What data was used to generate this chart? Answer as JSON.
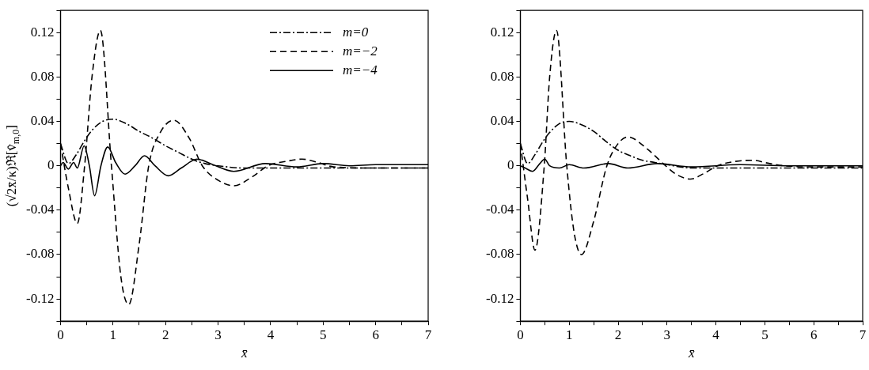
{
  "chart_data": [
    {
      "type": "line",
      "xlabel": "x̄",
      "ylabel": "(√2x̄/κ)ℜ[v̂$_{m,0}$]",
      "xlim": [
        0,
        7
      ],
      "ylim": [
        -0.14,
        0.14
      ],
      "xticks": [
        0,
        {
          "value": 0.5,
          "label": null
        },
        1,
        {
          "value": 1.5,
          "label": null
        },
        2,
        {
          "value": 2.5,
          "label": null
        },
        3,
        {
          "value": 3.5,
          "label": null
        },
        4,
        {
          "value": 4.5,
          "label": null
        },
        5,
        {
          "value": 5.5,
          "label": null
        },
        6,
        {
          "value": 6.5,
          "label": null
        },
        7
      ],
      "yticks": [
        {
          "value": -0.14,
          "label": null
        },
        -0.12,
        {
          "value": -0.1,
          "label": null
        },
        -0.08,
        {
          "value": -0.06,
          "label": null
        },
        -0.04,
        {
          "value": -0.02,
          "label": null
        },
        0,
        {
          "value": 0.02,
          "label": null
        },
        0.04,
        {
          "value": 0.06,
          "label": null
        },
        0.08,
        {
          "value": 0.1,
          "label": null
        },
        0.12,
        {
          "value": 0.14,
          "label": null
        }
      ],
      "legend": "top right",
      "marker": "none",
      "series": [
        {
          "name": "m=0",
          "color": "#000000",
          "line_style": "dotted",
          "x": [
            0,
            0.15,
            0.3,
            0.45,
            0.6,
            0.8,
            1.0,
            1.25,
            1.5,
            1.75,
            2.0,
            2.25,
            2.5,
            2.75,
            3.0,
            3.5,
            4.0,
            5.0,
            6.0,
            7.0
          ],
          "values": [
            0.02,
            0.002,
            0.01,
            0.022,
            0.032,
            0.04,
            0.042,
            0.038,
            0.031,
            0.025,
            0.018,
            0.012,
            0.006,
            0.002,
            0.0,
            -0.002,
            -0.002,
            -0.002,
            -0.002,
            -0.002
          ]
        },
        {
          "name": "m=−2",
          "color": "#000000",
          "line_style": "dashed",
          "x": [
            0,
            0.15,
            0.32,
            0.46,
            0.6,
            0.76,
            0.97,
            1.15,
            1.3,
            1.5,
            1.68,
            1.9,
            2.16,
            2.45,
            2.7,
            3.0,
            3.3,
            3.65,
            3.95,
            4.3,
            4.6,
            4.9,
            5.2,
            6.0,
            7.0
          ],
          "values": [
            0.02,
            -0.02,
            -0.052,
            0.0,
            0.08,
            0.122,
            0.0,
            -0.1,
            -0.125,
            -0.07,
            0.0,
            0.03,
            0.041,
            0.025,
            0.0,
            -0.013,
            -0.018,
            -0.01,
            0.0,
            0.004,
            0.006,
            0.003,
            -0.001,
            -0.002,
            -0.002
          ]
        },
        {
          "name": "m=−4",
          "color": "#000000",
          "line_style": "solid",
          "x": [
            0,
            0.05,
            0.15,
            0.25,
            0.32,
            0.45,
            0.55,
            0.65,
            0.77,
            0.9,
            1.05,
            1.23,
            1.42,
            1.6,
            1.8,
            2.05,
            2.3,
            2.6,
            2.9,
            3.3,
            3.9,
            4.5,
            5.0,
            5.5,
            6.0,
            7.0
          ],
          "values": [
            0.0,
            0.003,
            -0.003,
            0.003,
            -0.002,
            0.018,
            0.0,
            -0.027,
            0.0,
            0.017,
            0.003,
            -0.0075,
            0.0,
            0.009,
            0.0,
            -0.009,
            -0.002,
            0.006,
            0.001,
            -0.005,
            0.002,
            -0.001,
            0.002,
            0.0,
            0.001,
            0.001
          ]
        }
      ]
    },
    {
      "type": "line",
      "xlabel": "x̄",
      "xlim": [
        0,
        7
      ],
      "ylim": [
        -0.14,
        0.14
      ],
      "xticks": [
        0,
        {
          "value": 0.5,
          "label": null
        },
        1,
        {
          "value": 1.5,
          "label": null
        },
        2,
        {
          "value": 2.5,
          "label": null
        },
        3,
        {
          "value": 3.5,
          "label": null
        },
        4,
        {
          "value": 4.5,
          "label": null
        },
        5,
        {
          "value": 5.5,
          "label": null
        },
        6,
        {
          "value": 6.5,
          "label": null
        },
        7
      ],
      "yticks": [
        {
          "value": -0.14,
          "label": null
        },
        -0.12,
        {
          "value": -0.1,
          "label": null
        },
        -0.08,
        {
          "value": -0.06,
          "label": null
        },
        -0.04,
        {
          "value": -0.02,
          "label": null
        },
        0,
        {
          "value": 0.02,
          "label": null
        },
        0.04,
        {
          "value": 0.06,
          "label": null
        },
        0.08,
        {
          "value": 0.1,
          "label": null
        },
        0.12,
        {
          "value": 0.14,
          "label": null
        }
      ],
      "marker": "none",
      "series": [
        {
          "color": "#000000",
          "line_style": "dotted",
          "x": [
            0,
            0.15,
            0.3,
            0.45,
            0.6,
            0.8,
            1.0,
            1.25,
            1.5,
            1.75,
            2.0,
            2.25,
            2.5,
            2.75,
            3.0,
            3.5,
            4.0,
            5.0,
            6.0,
            7.0
          ],
          "values": [
            0.02,
            0.002,
            0.01,
            0.021,
            0.03,
            0.038,
            0.04,
            0.037,
            0.031,
            0.022,
            0.014,
            0.009,
            0.005,
            0.003,
            0.001,
            -0.002,
            -0.002,
            -0.002,
            -0.002,
            -0.002
          ]
        },
        {
          "color": "#000000",
          "line_style": "dashed",
          "x": [
            0,
            0.15,
            0.3,
            0.49,
            0.6,
            0.74,
            0.95,
            1.1,
            1.25,
            1.5,
            1.77,
            2.0,
            2.2,
            2.6,
            2.97,
            3.2,
            3.48,
            3.75,
            4.03,
            4.4,
            4.74,
            5.1,
            5.4,
            6.0,
            7.0
          ],
          "values": [
            0.02,
            -0.03,
            -0.076,
            0.0,
            0.08,
            0.122,
            0.0,
            -0.06,
            -0.08,
            -0.05,
            0.0,
            0.02,
            0.026,
            0.015,
            0.0,
            -0.008,
            -0.012,
            -0.007,
            0.0,
            0.004,
            0.005,
            0.002,
            0.0,
            -0.001,
            -0.001
          ]
        },
        {
          "color": "#000000",
          "line_style": "solid",
          "x": [
            0,
            0.1,
            0.25,
            0.4,
            0.5,
            0.6,
            0.8,
            1.0,
            1.3,
            1.8,
            2.2,
            2.8,
            3.5,
            4.5,
            5.5,
            7.0
          ],
          "values": [
            0.0,
            -0.002,
            -0.005,
            0.002,
            0.006,
            0.0,
            -0.002,
            0.001,
            -0.002,
            0.002,
            -0.002,
            0.002,
            -0.001,
            0.001,
            0.0,
            0.0
          ]
        }
      ]
    }
  ]
}
